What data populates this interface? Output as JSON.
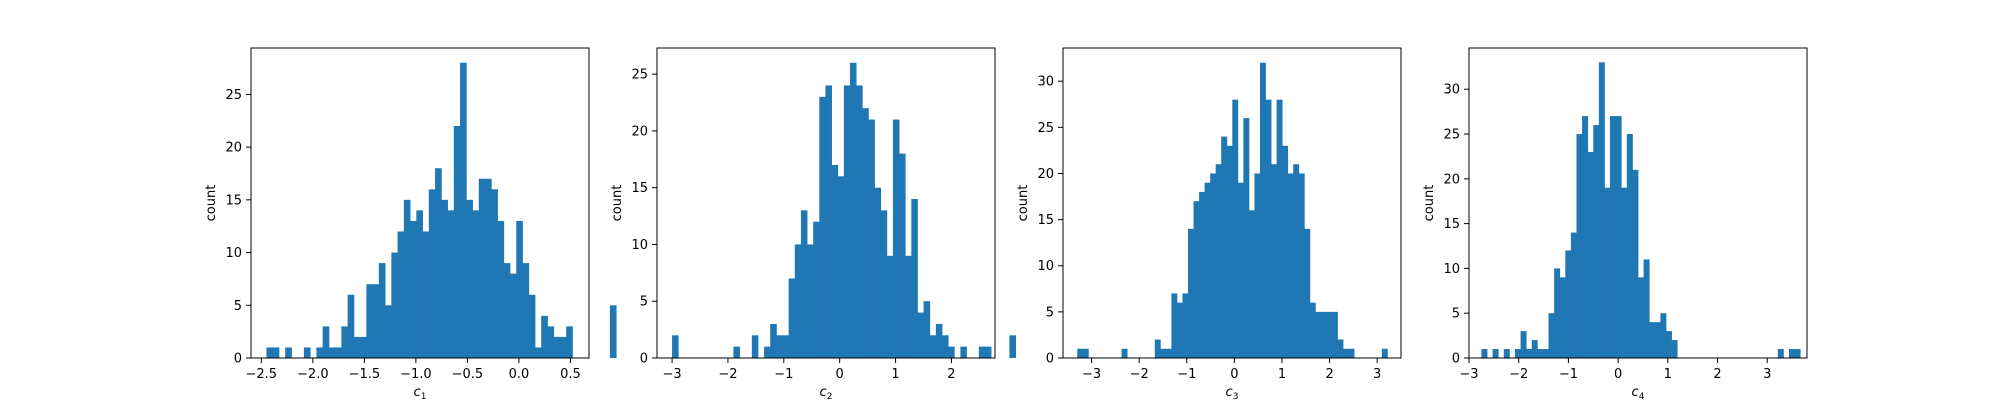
{
  "chart_data": [
    {
      "type": "bar",
      "xlabel": "c",
      "xlabel_sub": "1",
      "ylabel": "count",
      "bar_color": "#1f77b4",
      "xlim": [
        -2.6,
        0.68
      ],
      "ylim": [
        0,
        29.4
      ],
      "xticks": [
        -2.5,
        -2.0,
        -1.5,
        -1.0,
        -0.5,
        0.0,
        0.5
      ],
      "xtick_labels": [
        "−2.5",
        "−2.0",
        "−1.5",
        "−1.0",
        "−0.5",
        "0.0",
        "0.5"
      ],
      "yticks": [
        0,
        5,
        10,
        15,
        20,
        25
      ],
      "ytick_labels": [
        "0",
        "5",
        "10",
        "15",
        "20",
        "25"
      ],
      "bin_start": -2.45,
      "bin_width": 0.0606,
      "counts": [
        1,
        1,
        0,
        1,
        0,
        0,
        1,
        0,
        1,
        3,
        1,
        1,
        3,
        6,
        2,
        2,
        7,
        7,
        9,
        5,
        10,
        12,
        15,
        13,
        14,
        12,
        16,
        18,
        15,
        14,
        22,
        28,
        15,
        14,
        17,
        17,
        16,
        13,
        9,
        8,
        13,
        9,
        6,
        1,
        4,
        3,
        2,
        2,
        3,
        0,
        0,
        0,
        0,
        0,
        0,
        5
      ]
    },
    {
      "type": "bar",
      "xlabel": "c",
      "xlabel_sub": "2",
      "ylabel": "count",
      "bar_color": "#1f77b4",
      "xlim": [
        -3.27,
        2.78
      ],
      "ylim": [
        0,
        27.3
      ],
      "xticks": [
        -3,
        -2,
        -1,
        0,
        1,
        2
      ],
      "xtick_labels": [
        "−3",
        "−2",
        "−1",
        "0",
        "1",
        "2"
      ],
      "yticks": [
        0,
        5,
        10,
        15,
        20,
        25
      ],
      "ytick_labels": [
        "0",
        "5",
        "10",
        "15",
        "20",
        "25"
      ],
      "bin_start": -3.0,
      "bin_width": 0.1098,
      "counts": [
        2,
        0,
        0,
        0,
        0,
        0,
        0,
        0,
        0,
        0,
        1,
        0,
        0,
        2,
        0,
        1,
        3,
        2,
        2,
        7,
        10,
        13,
        10,
        12,
        23,
        24,
        17,
        16,
        24,
        26,
        24,
        22,
        21,
        15,
        13,
        9,
        21,
        18,
        9,
        14,
        4,
        5,
        2,
        3,
        2,
        1,
        0,
        1,
        0,
        0,
        1,
        1,
        0,
        0,
        0,
        2
      ]
    },
    {
      "type": "bar",
      "xlabel": "c",
      "xlabel_sub": "3",
      "ylabel": "count",
      "bar_color": "#1f77b4",
      "xlim": [
        -3.6,
        3.5
      ],
      "ylim": [
        0,
        33.6
      ],
      "xticks": [
        -3,
        -2,
        -1,
        0,
        1,
        2,
        3
      ],
      "xtick_labels": [
        "−3",
        "−2",
        "−1",
        "0",
        "1",
        "2",
        "3"
      ],
      "yticks": [
        0,
        5,
        10,
        15,
        20,
        25,
        30
      ],
      "ytick_labels": [
        "0",
        "5",
        "10",
        "15",
        "20",
        "25",
        "30"
      ],
      "bin_start": -3.3,
      "bin_width": 0.1163,
      "counts": [
        1,
        1,
        0,
        0,
        0,
        0,
        0,
        0,
        1,
        0,
        0,
        0,
        0,
        0,
        2,
        1,
        1,
        7,
        6,
        7,
        14,
        17,
        18,
        19,
        20,
        21,
        24,
        23,
        28,
        19,
        26,
        16,
        20,
        32,
        28,
        21,
        28,
        23,
        20,
        21,
        20,
        14,
        6,
        5,
        5,
        5,
        5,
        2,
        1,
        1,
        0,
        0,
        0,
        0,
        0,
        1
      ]
    },
    {
      "type": "bar",
      "xlabel": "c",
      "xlabel_sub": "4",
      "ylabel": "count",
      "bar_color": "#1f77b4",
      "xlim": [
        -3.0,
        3.8
      ],
      "ylim": [
        0,
        34.6
      ],
      "xticks": [
        -3,
        -2,
        -1,
        0,
        1,
        2,
        3
      ],
      "xtick_labels": [
        "−3",
        "−2",
        "−1",
        "0",
        "1",
        "2",
        "3"
      ],
      "yticks": [
        0,
        5,
        10,
        15,
        20,
        25,
        30
      ],
      "ytick_labels": [
        "0",
        "5",
        "10",
        "15",
        "20",
        "25",
        "30"
      ],
      "bin_start": -2.75,
      "bin_width": 0.1125,
      "counts": [
        1,
        0,
        1,
        0,
        1,
        0,
        1,
        3,
        1,
        2,
        1,
        1,
        5,
        10,
        9,
        12,
        14,
        25,
        27,
        23,
        26,
        33,
        19,
        27,
        27,
        19,
        25,
        21,
        9,
        11,
        4,
        4,
        5,
        3,
        2,
        0,
        0,
        0,
        0,
        0,
        0,
        0,
        0,
        0,
        0,
        0,
        0,
        0,
        0,
        0,
        0,
        0,
        0,
        1,
        0,
        1,
        1
      ]
    }
  ]
}
